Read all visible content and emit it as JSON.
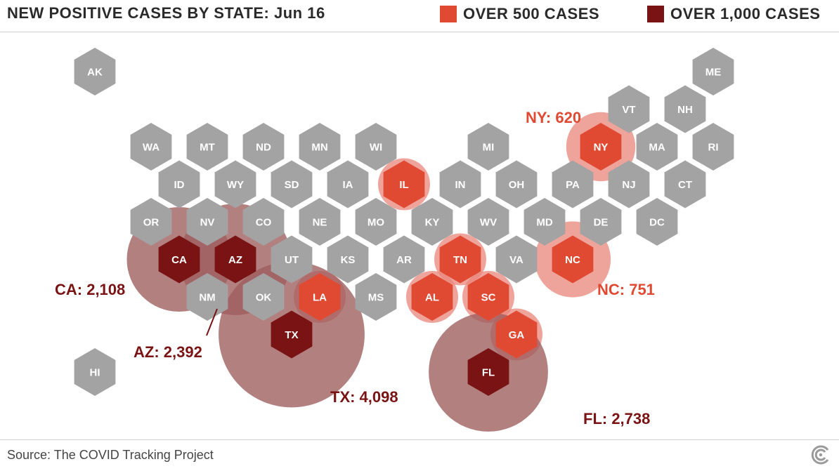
{
  "header": {
    "title": "NEW POSITIVE CASES BY STATE: Jun 16",
    "legend": [
      {
        "label": "OVER 500 CASES",
        "color": "#e04a32"
      },
      {
        "label": "OVER 1,000 CASES",
        "color": "#7a1414"
      }
    ]
  },
  "colors": {
    "default_hex": "#a3a3a3",
    "over_500": "#e04a32",
    "over_1000": "#7a1414",
    "bubble_500": "#e9857a",
    "bubble_1000": "#9e5c5c",
    "label_500": "#e04a32",
    "label_1000": "#7a1414",
    "hex_text": "#ffffff"
  },
  "states": [
    {
      "abbr": "AK",
      "col": 0,
      "row": 0
    },
    {
      "abbr": "ME",
      "col": 11,
      "row": 0
    },
    {
      "abbr": "VT",
      "col": 9,
      "row": 1
    },
    {
      "abbr": "NH",
      "col": 10,
      "row": 1
    },
    {
      "abbr": "WA",
      "col": 1,
      "row": 2
    },
    {
      "abbr": "MT",
      "col": 2,
      "row": 2
    },
    {
      "abbr": "ND",
      "col": 3,
      "row": 2
    },
    {
      "abbr": "MN",
      "col": 4,
      "row": 2
    },
    {
      "abbr": "WI",
      "col": 5,
      "row": 2
    },
    {
      "abbr": "MI",
      "col": 7,
      "row": 2
    },
    {
      "abbr": "NY",
      "col": 9,
      "row": 2
    },
    {
      "abbr": "MA",
      "col": 10,
      "row": 2
    },
    {
      "abbr": "RI",
      "col": 11,
      "row": 2
    },
    {
      "abbr": "ID",
      "col": 1,
      "row": 3
    },
    {
      "abbr": "WY",
      "col": 2,
      "row": 3
    },
    {
      "abbr": "SD",
      "col": 3,
      "row": 3
    },
    {
      "abbr": "IA",
      "col": 4,
      "row": 3
    },
    {
      "abbr": "IL",
      "col": 5,
      "row": 3
    },
    {
      "abbr": "IN",
      "col": 6,
      "row": 3
    },
    {
      "abbr": "OH",
      "col": 7,
      "row": 3
    },
    {
      "abbr": "PA",
      "col": 8,
      "row": 3
    },
    {
      "abbr": "NJ",
      "col": 9,
      "row": 3
    },
    {
      "abbr": "CT",
      "col": 10,
      "row": 3
    },
    {
      "abbr": "OR",
      "col": 1,
      "row": 4
    },
    {
      "abbr": "NV",
      "col": 2,
      "row": 4
    },
    {
      "abbr": "CO",
      "col": 3,
      "row": 4
    },
    {
      "abbr": "NE",
      "col": 4,
      "row": 4
    },
    {
      "abbr": "MO",
      "col": 5,
      "row": 4
    },
    {
      "abbr": "KY",
      "col": 6,
      "row": 4
    },
    {
      "abbr": "WV",
      "col": 7,
      "row": 4
    },
    {
      "abbr": "MD",
      "col": 8,
      "row": 4
    },
    {
      "abbr": "DE",
      "col": 9,
      "row": 4
    },
    {
      "abbr": "DC",
      "col": 10,
      "row": 4
    },
    {
      "abbr": "CA",
      "col": 1,
      "row": 5
    },
    {
      "abbr": "AZ",
      "col": 2,
      "row": 5
    },
    {
      "abbr": "UT",
      "col": 3,
      "row": 5
    },
    {
      "abbr": "KS",
      "col": 4,
      "row": 5
    },
    {
      "abbr": "AR",
      "col": 5,
      "row": 5
    },
    {
      "abbr": "TN",
      "col": 6,
      "row": 5
    },
    {
      "abbr": "VA",
      "col": 7,
      "row": 5
    },
    {
      "abbr": "NC",
      "col": 8,
      "row": 5
    },
    {
      "abbr": "NM",
      "col": 2,
      "row": 6
    },
    {
      "abbr": "OK",
      "col": 3,
      "row": 6
    },
    {
      "abbr": "LA",
      "col": 4,
      "row": 6
    },
    {
      "abbr": "MS",
      "col": 5,
      "row": 6
    },
    {
      "abbr": "AL",
      "col": 6,
      "row": 6
    },
    {
      "abbr": "SC",
      "col": 7,
      "row": 6
    },
    {
      "abbr": "TX",
      "col": 3,
      "row": 7
    },
    {
      "abbr": "GA",
      "col": 7,
      "row": 7
    },
    {
      "abbr": "HI",
      "col": 0,
      "row": 8
    },
    {
      "abbr": "FL",
      "col": 7,
      "row": 8
    }
  ],
  "cases": {
    "TX": 4098,
    "FL": 2738,
    "AZ": 2392,
    "CA": 2108,
    "NC": 751,
    "NY": 620,
    "IL": null,
    "TN": null,
    "LA": null,
    "AL": null,
    "SC": null,
    "GA": null
  },
  "annotations": [
    {
      "state": "NY",
      "text": "NY: 620",
      "level": "over_500"
    },
    {
      "state": "NC",
      "text": "NC: 751",
      "level": "over_500"
    },
    {
      "state": "CA",
      "text": "CA: 2,108",
      "level": "over_1000"
    },
    {
      "state": "AZ",
      "text": "AZ: 2,392",
      "level": "over_1000"
    },
    {
      "state": "TX",
      "text": "TX: 4,098",
      "level": "over_1000"
    },
    {
      "state": "FL",
      "text": "FL: 2,738",
      "level": "over_1000"
    }
  ],
  "levels": {
    "over_500": [
      "IL",
      "TN",
      "LA",
      "AL",
      "SC",
      "GA",
      "NY",
      "NC"
    ],
    "over_1000": [
      "CA",
      "AZ",
      "TX",
      "FL"
    ]
  },
  "footer": {
    "source": "Source: The COVID Tracking Project",
    "logo_icon": "covid-tracking-logo-icon"
  }
}
